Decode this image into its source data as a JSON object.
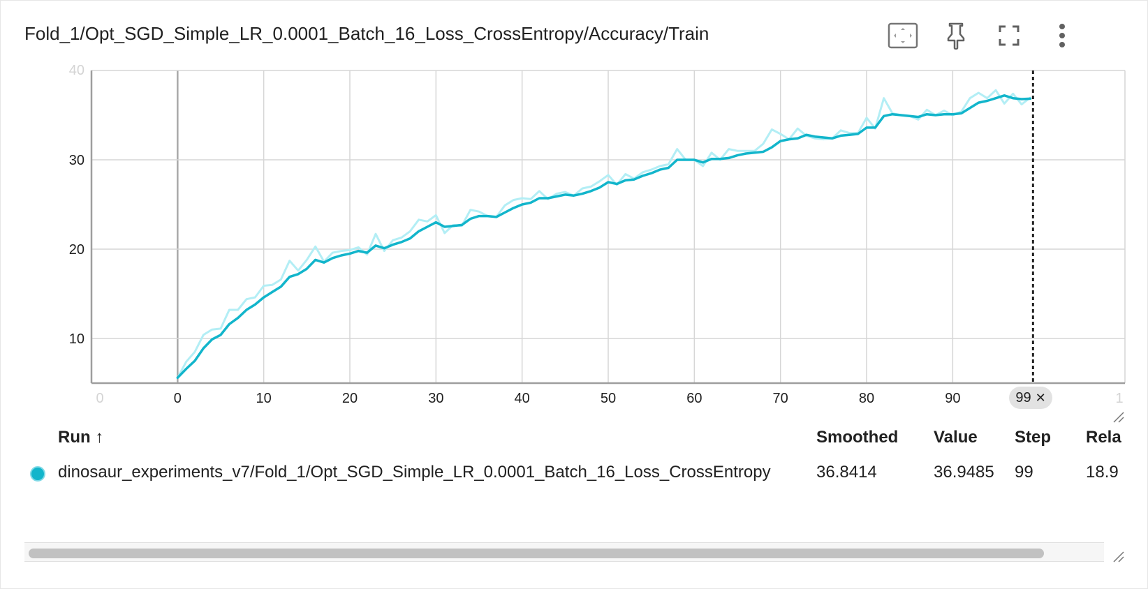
{
  "card": {
    "title": "Fold_1/Opt_SGD_Simple_LR_0.0001_Batch_16_Loss_CrossEntropy/Accuracy/Train"
  },
  "toolbar": {
    "icons": [
      "fit-domain-icon",
      "pin-icon",
      "fullscreen-icon",
      "more-vert-icon"
    ]
  },
  "colors": {
    "smoothed_line": "#12b5cb",
    "raw_line": "#b3eef5",
    "grid": "#d6d6d6",
    "axis": "#9e9e9e"
  },
  "chart_data": {
    "type": "line",
    "x_ticks": [
      "0",
      "0",
      "10",
      "20",
      "30",
      "40",
      "50",
      "60",
      "70",
      "80",
      "90",
      "1"
    ],
    "y_ticks": [
      "40",
      "30",
      "20",
      "10"
    ],
    "xlim": [
      -10,
      110
    ],
    "ylim": [
      5,
      40
    ],
    "cursor_step": 99,
    "cursor_label": "99",
    "grid": true,
    "series": [
      {
        "name": "dinosaur_experiments_v7/Fold_1/Opt_SGD_Simple_LR_0.0001_Batch_16_Loss_CrossEntropy",
        "color": "#b3eef5",
        "role": "raw",
        "x": [
          0,
          1,
          2,
          3,
          4,
          5,
          6,
          7,
          8,
          9,
          10,
          11,
          12,
          13,
          14,
          15,
          16,
          17,
          18,
          19,
          20,
          21,
          22,
          23,
          24,
          25,
          26,
          27,
          28,
          29,
          30,
          31,
          32,
          33,
          34,
          35,
          36,
          37,
          38,
          39,
          40,
          41,
          42,
          43,
          44,
          45,
          46,
          47,
          48,
          49,
          50,
          51,
          52,
          53,
          54,
          55,
          56,
          57,
          58,
          59,
          60,
          61,
          62,
          63,
          64,
          65,
          66,
          67,
          68,
          69,
          70,
          71,
          72,
          73,
          74,
          75,
          76,
          77,
          78,
          79,
          80,
          81,
          82,
          83,
          84,
          85,
          86,
          87,
          88,
          89,
          90,
          91,
          92,
          93,
          94,
          95,
          96,
          97,
          98,
          99
        ],
        "y": [
          5.6,
          7.4,
          8.5,
          10.4,
          11.0,
          11.1,
          13.2,
          13.2,
          14.4,
          14.6,
          15.9,
          16.0,
          16.6,
          18.7,
          17.6,
          18.8,
          20.3,
          18.6,
          19.6,
          19.8,
          19.9,
          20.2,
          19.4,
          21.7,
          19.8,
          21.0,
          21.3,
          22.0,
          23.3,
          23.1,
          23.8,
          21.8,
          22.7,
          22.6,
          24.4,
          24.2,
          23.7,
          23.6,
          24.9,
          25.5,
          25.7,
          25.6,
          26.5,
          25.6,
          26.2,
          26.4,
          26.0,
          26.8,
          27.0,
          27.6,
          28.3,
          27.2,
          28.4,
          27.9,
          28.6,
          28.9,
          29.3,
          29.5,
          31.2,
          30.0,
          30.0,
          29.3,
          30.8,
          30.0,
          31.2,
          31.0,
          31.0,
          31.0,
          31.8,
          33.4,
          32.9,
          32.3,
          33.5,
          32.7,
          32.4,
          32.3,
          32.4,
          33.3,
          33.0,
          33.0,
          34.7,
          33.5,
          36.9,
          35.2,
          35.0,
          34.9,
          34.5,
          35.6,
          35.0,
          35.5,
          35.0,
          35.4,
          36.9,
          37.5,
          36.9,
          37.8,
          36.3,
          37.4,
          36.2,
          36.95
        ]
      },
      {
        "name": "dinosaur_experiments_v7/Fold_1/Opt_SGD_Simple_LR_0.0001_Batch_16_Loss_CrossEntropy",
        "color": "#12b5cb",
        "role": "smoothed",
        "x": [
          0,
          1,
          2,
          3,
          4,
          5,
          6,
          7,
          8,
          9,
          10,
          11,
          12,
          13,
          14,
          15,
          16,
          17,
          18,
          19,
          20,
          21,
          22,
          23,
          24,
          25,
          26,
          27,
          28,
          29,
          30,
          31,
          32,
          33,
          34,
          35,
          36,
          37,
          38,
          39,
          40,
          41,
          42,
          43,
          44,
          45,
          46,
          47,
          48,
          49,
          50,
          51,
          52,
          53,
          54,
          55,
          56,
          57,
          58,
          59,
          60,
          61,
          62,
          63,
          64,
          65,
          66,
          67,
          68,
          69,
          70,
          71,
          72,
          73,
          74,
          75,
          76,
          77,
          78,
          79,
          80,
          81,
          82,
          83,
          84,
          85,
          86,
          87,
          88,
          89,
          90,
          91,
          92,
          93,
          94,
          95,
          96,
          97,
          98,
          99
        ],
        "y": [
          5.6,
          6.6,
          7.5,
          8.9,
          9.9,
          10.4,
          11.6,
          12.3,
          13.2,
          13.8,
          14.6,
          15.2,
          15.8,
          16.9,
          17.2,
          17.8,
          18.8,
          18.5,
          19.0,
          19.3,
          19.5,
          19.8,
          19.6,
          20.4,
          20.1,
          20.5,
          20.8,
          21.2,
          22.0,
          22.5,
          23.0,
          22.5,
          22.6,
          22.7,
          23.4,
          23.7,
          23.7,
          23.6,
          24.1,
          24.6,
          25.0,
          25.2,
          25.7,
          25.7,
          25.9,
          26.1,
          26.0,
          26.2,
          26.5,
          26.9,
          27.5,
          27.3,
          27.7,
          27.8,
          28.2,
          28.5,
          28.9,
          29.1,
          30.0,
          30.0,
          30.0,
          29.7,
          30.1,
          30.1,
          30.2,
          30.5,
          30.7,
          30.8,
          30.9,
          31.4,
          32.1,
          32.3,
          32.4,
          32.8,
          32.6,
          32.5,
          32.4,
          32.7,
          32.8,
          32.9,
          33.6,
          33.6,
          34.9,
          35.1,
          35.0,
          34.9,
          34.8,
          35.1,
          35.0,
          35.1,
          35.1,
          35.2,
          35.8,
          36.4,
          36.6,
          36.9,
          37.2,
          36.9,
          36.8,
          36.8414
        ]
      }
    ]
  },
  "table": {
    "headers": {
      "run": "Run",
      "sort_indicator": "↑",
      "smoothed": "Smoothed",
      "value": "Value",
      "step": "Step",
      "relative": "Rela"
    },
    "rows": [
      {
        "run": "dinosaur_experiments_v7/Fold_1/Opt_SGD_Simple_LR_0.0001_Batch_16_Loss_CrossEntropy",
        "smoothed": "36.8414",
        "value": "36.9485",
        "step": "99",
        "relative": "18.9"
      }
    ]
  }
}
